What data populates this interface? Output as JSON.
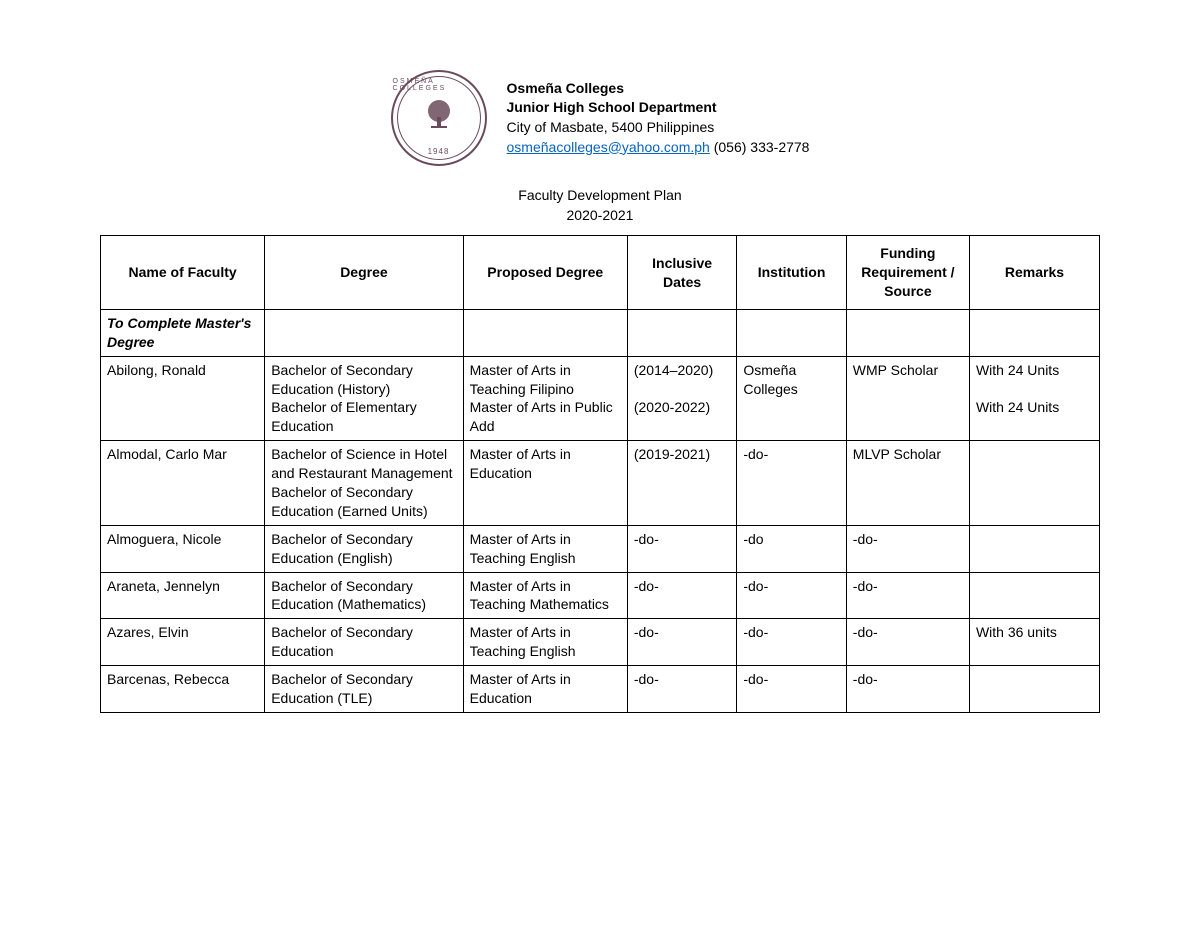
{
  "header": {
    "college_name": "Osmeña Colleges",
    "department": "Junior High School Department",
    "address": "City of Masbate, 5400 Philippines",
    "email": "osmeñacolleges@yahoo.com.ph",
    "phone": " (056) 333-2778",
    "logo_top": "OSMEÑA COLLEGES",
    "logo_year": "1948"
  },
  "title": {
    "line1": "Faculty Development Plan",
    "line2": "2020-2021"
  },
  "columns": {
    "c0": "Name of Faculty",
    "c1": "Degree",
    "c2": "Proposed Degree",
    "c3": "Inclusive Dates",
    "c4": "Institution",
    "c5": "Funding Requirement / Source",
    "c6": "Remarks"
  },
  "section_label": "To Complete Master's Degree",
  "rows": [
    {
      "name": "Abilong, Ronald",
      "degree": "Bachelor of Secondary Education (History)\nBachelor of Elementary Education",
      "proposed": "Master of Arts in Teaching Filipino\nMaster of Arts in Public Add",
      "dates": "(2014–2020)\n\n(2020-2022)",
      "institution": "Osmeña Colleges",
      "funding": "WMP Scholar",
      "remarks": "With 24 Units\n\nWith 24 Units"
    },
    {
      "name": "Almodal, Carlo Mar",
      "degree": "Bachelor of Science in Hotel and Restaurant Management\nBachelor of Secondary Education (Earned Units)",
      "proposed": "Master of Arts in Education",
      "dates": "(2019-2021)",
      "institution": "-do-",
      "funding": "MLVP Scholar",
      "remarks": ""
    },
    {
      "name": "Almoguera, Nicole",
      "degree": "Bachelor of Secondary Education (English)",
      "proposed": "Master of Arts in Teaching English",
      "dates": "-do-",
      "institution": "-do",
      "funding": "-do-",
      "remarks": ""
    },
    {
      "name": "Araneta, Jennelyn",
      "degree": "Bachelor of Secondary Education (Mathematics)",
      "proposed": "Master of Arts in Teaching Mathematics",
      "dates": "-do-",
      "institution": "-do-",
      "funding": "-do-",
      "remarks": ""
    },
    {
      "name": "Azares, Elvin",
      "degree": "Bachelor of Secondary Education",
      "proposed": "Master of Arts in Teaching English",
      "dates": "-do-",
      "institution": "-do-",
      "funding": "-do-",
      "remarks": "With 36 units"
    },
    {
      "name": "Barcenas, Rebecca",
      "degree": "Bachelor of Secondary Education (TLE)",
      "proposed": "Master of Arts in Education",
      "dates": "-do-",
      "institution": "-do-",
      "funding": "-do-",
      "remarks": ""
    }
  ]
}
